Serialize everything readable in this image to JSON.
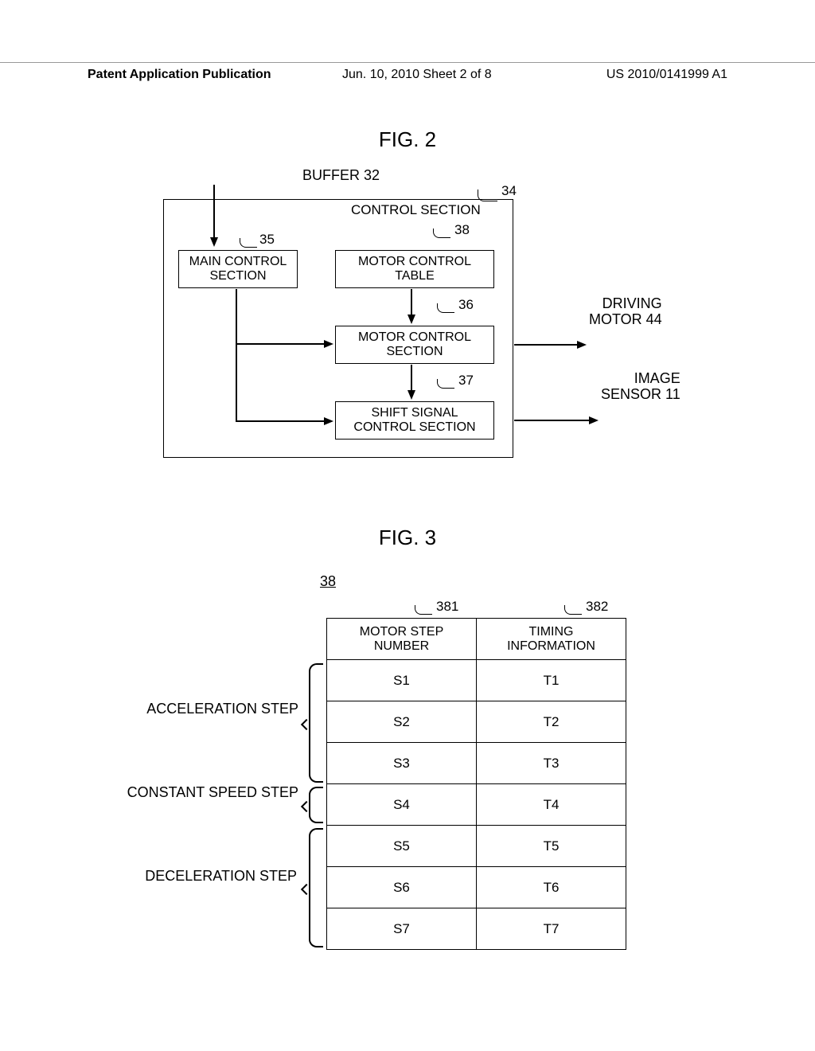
{
  "header": {
    "left": "Patent Application Publication",
    "center": "Jun. 10, 2010  Sheet 2 of 8",
    "right": "US 2010/0141999 A1"
  },
  "fig2": {
    "title": "FIG. 2",
    "buffer": "BUFFER 32",
    "controlSection": "CONTROL SECTION",
    "mainControl": "MAIN CONTROL SECTION",
    "motorTable": "MOTOR CONTROL TABLE",
    "motorControl": "MOTOR CONTROL SECTION",
    "shiftSignal": "SHIFT SIGNAL CONTROL SECTION",
    "drivingMotor": "DRIVING MOTOR 44",
    "imageSensor": "IMAGE SENSOR 11",
    "ref34": "34",
    "ref35": "35",
    "ref36": "36",
    "ref37": "37",
    "ref38": "38"
  },
  "fig3": {
    "title": "FIG. 3",
    "ref38": "38",
    "ref381": "381",
    "ref382": "382",
    "col1": "MOTOR STEP NUMBER",
    "col2": "TIMING INFORMATION",
    "accelLabel": "ACCELERATION STEP",
    "constLabel": "CONSTANT SPEED STEP",
    "decelLabel": "DECELERATION STEP",
    "rows": [
      {
        "s": "S1",
        "t": "T1"
      },
      {
        "s": "S2",
        "t": "T2"
      },
      {
        "s": "S3",
        "t": "T3"
      },
      {
        "s": "S4",
        "t": "T4"
      },
      {
        "s": "S5",
        "t": "T5"
      },
      {
        "s": "S6",
        "t": "T6"
      },
      {
        "s": "S7",
        "t": "T7"
      }
    ]
  }
}
